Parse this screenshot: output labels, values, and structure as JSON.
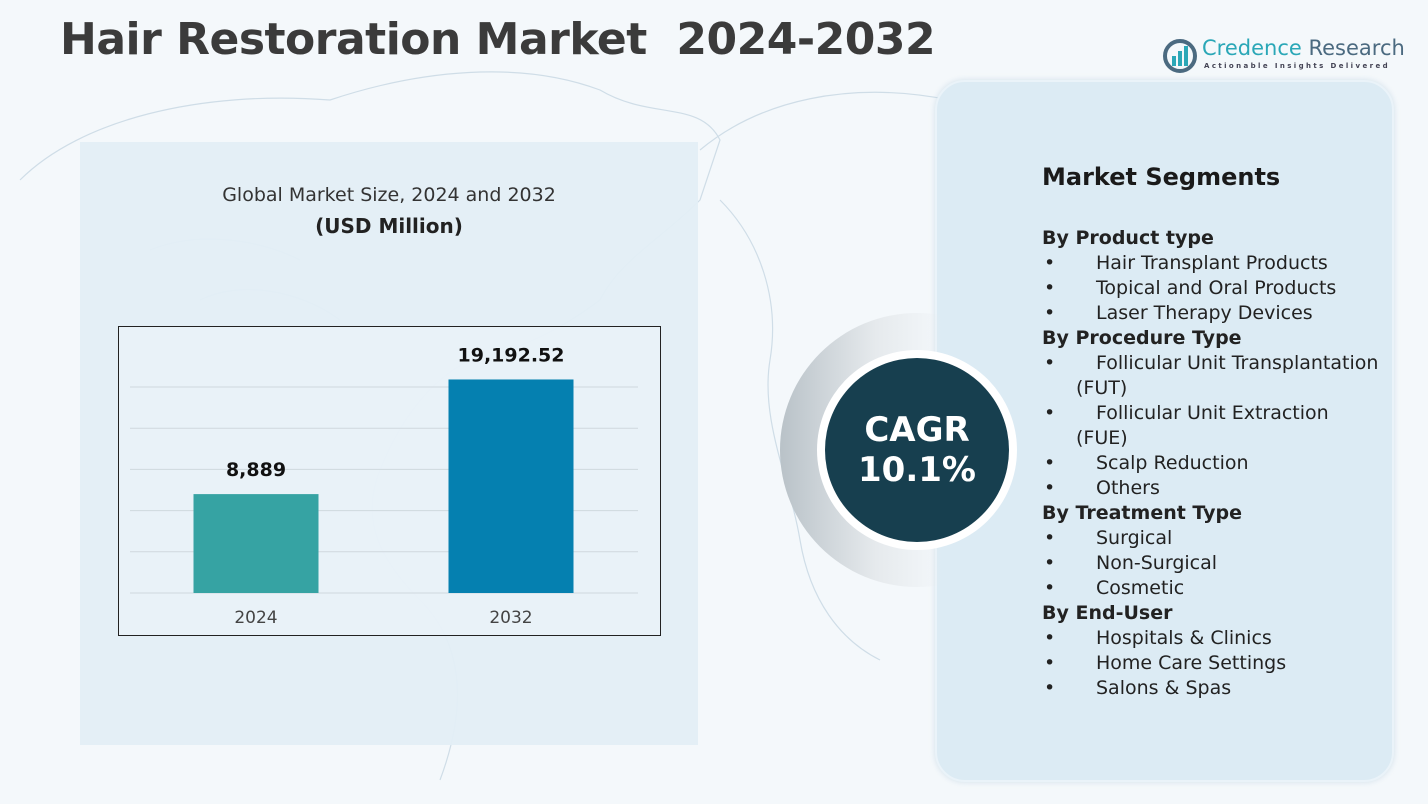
{
  "title": "Hair Restoration Market  2024-2032",
  "logo": {
    "name_part1": "Credence",
    "name_part2": "Research",
    "tagline": "Actionable Insights Delivered",
    "colors": {
      "primary": "#2aa7b7",
      "secondary": "#4b6a80"
    }
  },
  "chart_data": {
    "type": "bar",
    "title": "Global Market Size, 2024 and 2032",
    "subtitle": "(USD Million)",
    "categories": [
      "2024",
      "2032"
    ],
    "values": [
      8889,
      19192.52
    ],
    "data_labels": [
      "8,889",
      "19,192.52"
    ],
    "colors": [
      "#36a3a3",
      "#0580b0"
    ],
    "ylim": [
      0,
      24000
    ],
    "grid": true,
    "legend": "none"
  },
  "cagr": {
    "label": "CAGR",
    "value": "10.1%",
    "color": "#173f4f"
  },
  "segments": {
    "title": "Market Segments",
    "groups": [
      {
        "heading": "By Product type",
        "items": [
          "Hair Transplant Products",
          "Topical and Oral Products",
          "Laser Therapy Devices"
        ]
      },
      {
        "heading": "By Procedure Type",
        "items": [
          "Follicular Unit Transplantation (FUT)",
          "Follicular Unit Extraction (FUE)",
          "Scalp Reduction",
          "Others"
        ]
      },
      {
        "heading": "By Treatment Type",
        "items": [
          "Surgical",
          "Non-Surgical",
          "Cosmetic"
        ]
      },
      {
        "heading": "By End-User",
        "items": [
          "Hospitals & Clinics",
          "Home Care Settings",
          "Salons & Spas"
        ]
      }
    ]
  }
}
